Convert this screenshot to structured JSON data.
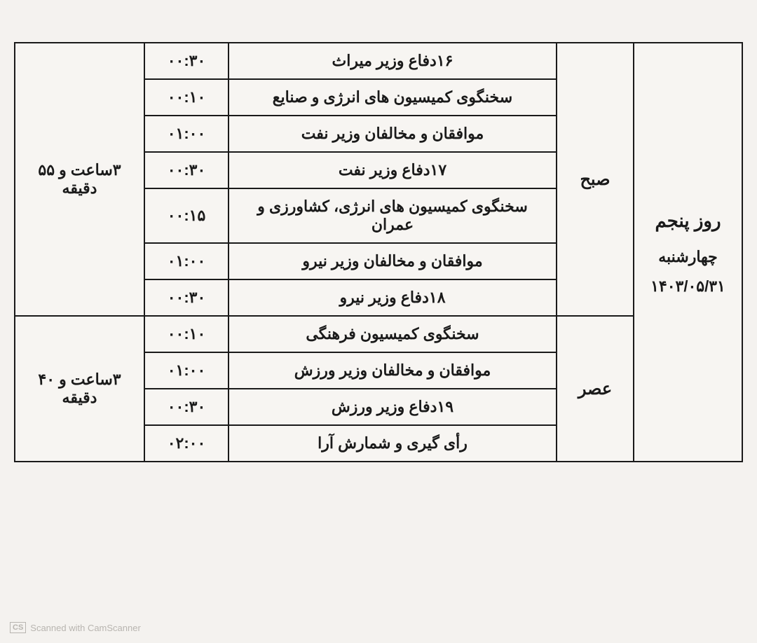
{
  "colors": {
    "page_bg": "#f4f2ef",
    "table_bg": "#f7f5f2",
    "border": "#1a1a1a",
    "text": "#1a1a1a",
    "watermark": "#b8b5b0"
  },
  "typography": {
    "base_fontsize": 22,
    "day_title_fontsize": 26,
    "session_fontsize": 24,
    "total_fontsize": 22,
    "weight_normal": 600,
    "weight_heavy": 900
  },
  "layout": {
    "col_day_width": 155,
    "col_session_width": 110,
    "col_time_width": 120,
    "col_total_width": 185,
    "row_padding": 12,
    "border_width": 2
  },
  "day": {
    "title": "روز پنجم",
    "weekday": "چهارشنبه",
    "date": "۱۴۰۳/۰۵/۳۱"
  },
  "sessions": {
    "morning": {
      "label": "صبح",
      "total": "۳ساعت و ۵۵ دقیقه",
      "rows": [
        {
          "topic": "۱۶دفاع وزیر میراث",
          "time": "۰۰:۳۰"
        },
        {
          "topic": "سخنگوی کمیسیون های انرژی و صنایع",
          "time": "۰۰:۱۰"
        },
        {
          "topic": "موافقان و مخالفان وزیر نفت",
          "time": "۰۱:۰۰"
        },
        {
          "topic": "۱۷دفاع وزیر نفت",
          "time": "۰۰:۳۰"
        },
        {
          "topic": "سخنگوی کمیسیون های انرژی، کشاورزی و عمران",
          "time": "۰۰:۱۵"
        },
        {
          "topic": "موافقان و مخالفان وزیر نیرو",
          "time": "۰۱:۰۰"
        },
        {
          "topic": "۱۸دفاع وزیر نیرو",
          "time": "۰۰:۳۰"
        }
      ]
    },
    "evening": {
      "label": "عصر",
      "total": "۳ساعت و ۴۰ دقیقه",
      "rows": [
        {
          "topic": "سخنگوی کمیسیون فرهنگی",
          "time": "۰۰:۱۰"
        },
        {
          "topic": "موافقان و مخالفان وزیر ورزش",
          "time": "۰۱:۰۰"
        },
        {
          "topic": "۱۹دفاع وزیر ورزش",
          "time": "۰۰:۳۰"
        },
        {
          "topic": "رأی گیری و شمارش آرا",
          "time": "۰۲:۰۰"
        }
      ]
    }
  },
  "watermark": {
    "badge": "CS",
    "text": "Scanned with CamScanner"
  }
}
